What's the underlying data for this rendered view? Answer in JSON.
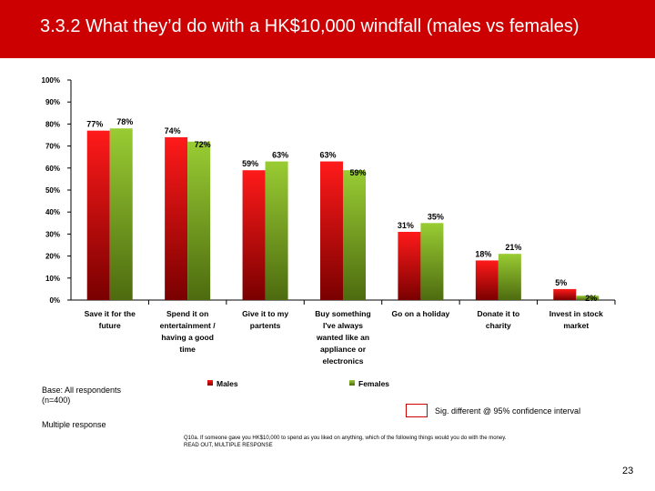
{
  "slide": {
    "title": "3.3.2 What they’d do with a HK$10,000 windfall (males vs females)",
    "base_line1": "Base: All respondents",
    "base_line2": "(n=400)",
    "multiple_response": "Multiple response",
    "sig_label": "Sig. different @ 95% confidence interval",
    "question_line1": "Q10a. If someone gave you HK$10,000 to spend as you liked on anything, which of the following things would you do with the money.",
    "question_line2": "READ OUT, MULTIPLE RESPONSE",
    "page_number": "23"
  },
  "colors": {
    "title_bar": "#cc0000",
    "males_top": "#ff1a1a",
    "males_bottom": "#7a0000",
    "females_top": "#99cc33",
    "females_bottom": "#4d6b0f"
  },
  "chart_data": {
    "type": "bar",
    "categories": [
      [
        "Save it for the",
        "future"
      ],
      [
        "Spend it on",
        "entertainment /",
        "having a good",
        "time"
      ],
      [
        "Give it to my",
        "partents"
      ],
      [
        "Buy something",
        "I've always",
        "wanted like an",
        "appliance or",
        "electronics"
      ],
      [
        "Go on a holiday"
      ],
      [
        "Donate it to",
        "charity"
      ],
      [
        "Invest in stock",
        "market"
      ]
    ],
    "series": [
      {
        "name": "Males",
        "values": [
          77,
          74,
          59,
          63,
          31,
          18,
          5
        ],
        "labels": [
          "77%",
          "74%",
          "59%",
          "63%",
          "31%",
          "18%",
          "5%"
        ]
      },
      {
        "name": "Females",
        "values": [
          78,
          72,
          63,
          59,
          35,
          21,
          2
        ],
        "labels": [
          "78%",
          "72%",
          "63%",
          "59%",
          "35%",
          "21%",
          "2%"
        ]
      }
    ],
    "ylim": [
      0,
      100
    ],
    "yticks": [
      "0%",
      "10%",
      "20%",
      "30%",
      "40%",
      "50%",
      "60%",
      "70%",
      "80%",
      "90%",
      "100%"
    ],
    "legend_position": "bottom",
    "grid": false
  }
}
